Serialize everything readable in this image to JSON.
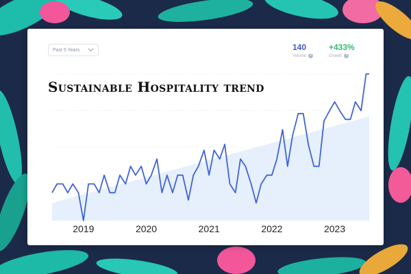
{
  "card": {
    "range_select": "Past 5 Years",
    "stats": {
      "volume": {
        "value": "140",
        "label": "Volume"
      },
      "growth": {
        "value": "+433%",
        "label": "Growth"
      }
    }
  },
  "icons": {
    "dropdown": "chevron-down-icon",
    "help": "help-circle-icon"
  },
  "colors": {
    "line": "#3e63d6",
    "trend_fill": "#e6effc",
    "volume": "#3e5bc9",
    "growth": "#2ebf6e"
  },
  "chart_data": {
    "type": "line",
    "title": "Sustainable Hospitality trend",
    "xlabel": "",
    "ylabel": "",
    "x_ticks": [
      "2019",
      "2020",
      "2021",
      "2022",
      "2023"
    ],
    "x_range": [
      2018.5,
      2023.55
    ],
    "ylim": [
      0,
      100
    ],
    "grid": true,
    "series": [
      {
        "x": [
          2018.5,
          2018.58,
          2018.67,
          2018.75,
          2018.83,
          2018.92,
          2019.0,
          2019.08,
          2019.17,
          2019.25,
          2019.33,
          2019.42,
          2019.5,
          2019.58,
          2019.67,
          2019.75,
          2019.83,
          2019.92,
          2020.0,
          2020.08,
          2020.17,
          2020.25,
          2020.33,
          2020.42,
          2020.5,
          2020.58,
          2020.67,
          2020.75,
          2020.83,
          2020.92,
          2021.0,
          2021.08,
          2021.17,
          2021.25,
          2021.33,
          2021.42,
          2021.5,
          2021.58,
          2021.67,
          2021.75,
          2021.83,
          2021.92,
          2022.0,
          2022.08,
          2022.17,
          2022.25,
          2022.33,
          2022.42,
          2022.5,
          2022.58,
          2022.67,
          2022.75,
          2022.83,
          2022.92,
          2023.0,
          2023.08,
          2023.17,
          2023.25,
          2023.33,
          2023.42,
          2023.5,
          2023.55
        ],
        "values": [
          19,
          25,
          25,
          19,
          25,
          19,
          0,
          25,
          25,
          19,
          31,
          19,
          19,
          31,
          25,
          37,
          31,
          37,
          25,
          31,
          42,
          19,
          31,
          19,
          31,
          31,
          14,
          31,
          37,
          48,
          31,
          48,
          42,
          52,
          25,
          19,
          42,
          37,
          25,
          12,
          25,
          31,
          31,
          42,
          62,
          37,
          58,
          73,
          73,
          52,
          37,
          37,
          68,
          75,
          81,
          75,
          69,
          69,
          81,
          75,
          100,
          100
        ]
      }
    ],
    "trend_band": {
      "start": 12,
      "end": 71
    }
  }
}
